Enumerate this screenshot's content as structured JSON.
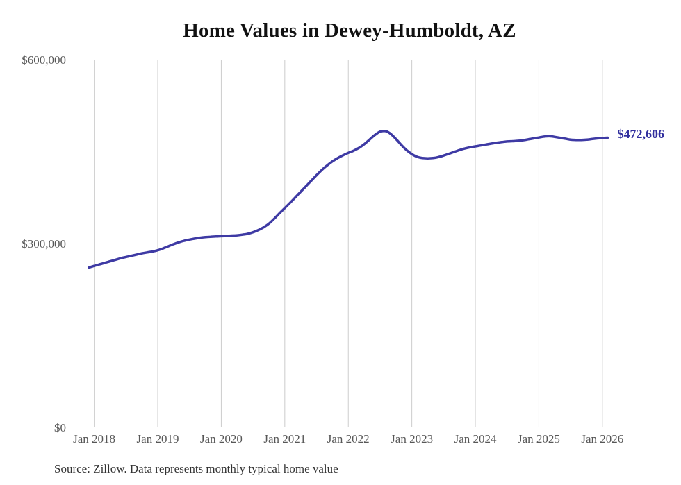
{
  "chart_data": {
    "type": "line",
    "title": "Home Values in Dewey-Humboldt, AZ",
    "source_note": "Source: Zillow. Data represents monthly typical home value",
    "xlabel": "",
    "ylabel": "",
    "legend": "none",
    "grid": "vertical-only",
    "ylim": [
      0,
      600000
    ],
    "y_tick_values": [
      0,
      300000,
      600000
    ],
    "y_tick_labels": [
      "$0",
      "$300,000",
      "$600,000"
    ],
    "x_tick_labels": [
      "Jan 2018",
      "Jan 2019",
      "Jan 2020",
      "Jan 2021",
      "Jan 2022",
      "Jan 2023",
      "Jan 2024",
      "Jan 2025",
      "Jan 2026"
    ],
    "end_label": "$472,606",
    "last_value": 472606,
    "series": [
      {
        "name": "Monthly typical home value",
        "start_month": "2017-12",
        "end_month": "2026-02",
        "interval": "monthly",
        "values": [
          261000,
          263500,
          266000,
          268500,
          271000,
          273500,
          276000,
          278000,
          280000,
          282000,
          284000,
          285500,
          287000,
          289000,
          292000,
          295500,
          299000,
          302000,
          304500,
          306500,
          308000,
          309500,
          310500,
          311000,
          311500,
          312000,
          312500,
          313000,
          313500,
          314500,
          316000,
          318500,
          322000,
          326500,
          332500,
          340500,
          349500,
          358000,
          366500,
          375500,
          384500,
          393500,
          402500,
          411500,
          420000,
          427500,
          434000,
          439500,
          444000,
          448000,
          451500,
          456000,
          462000,
          469500,
          477000,
          482500,
          483500,
          479000,
          470500,
          461000,
          452500,
          446000,
          441500,
          439500,
          439000,
          439500,
          441000,
          443500,
          446500,
          449500,
          452500,
          455000,
          457000,
          458500,
          460000,
          461500,
          463000,
          464500,
          465500,
          466500,
          467000,
          467500,
          468500,
          470000,
          471500,
          473000,
          474500,
          475000,
          474000,
          472500,
          471000,
          469500,
          469000,
          469000,
          469500,
          470500,
          471500,
          472200,
          472606
        ]
      }
    ],
    "colors": {
      "line": "#3e3aa4",
      "end_label": "#312f9e",
      "grid": "#cccccc",
      "axis_text": "#575757",
      "title": "#111111",
      "source": "#333333",
      "background": "#ffffff"
    }
  }
}
